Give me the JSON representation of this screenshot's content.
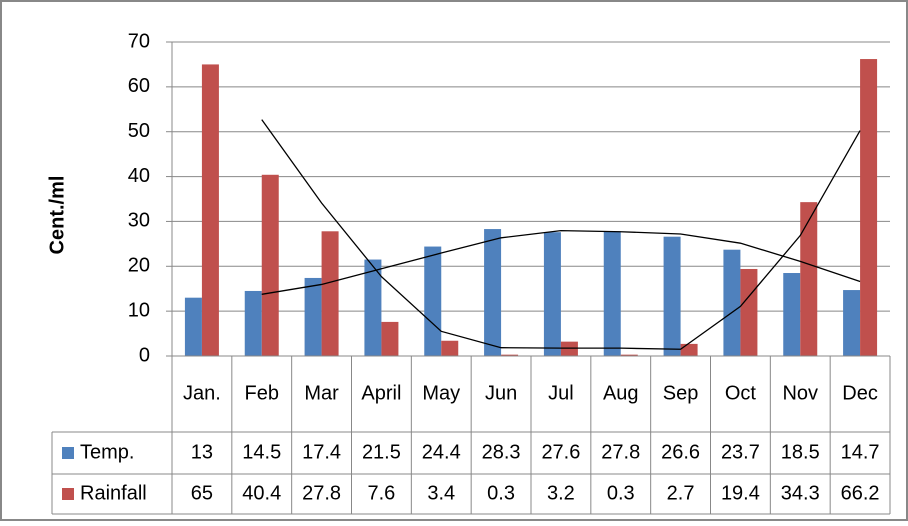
{
  "chart_data": {
    "type": "bar",
    "y_label": "Cent./ml",
    "categories": [
      "Jan.",
      "Feb",
      "Mar",
      "April",
      "May",
      "Jun",
      "Jul",
      "Aug",
      "Sep",
      "Oct",
      "Nov",
      "Dec"
    ],
    "series": [
      {
        "name": "Temp.",
        "color": "#4f81bd",
        "values": [
          13,
          14.5,
          17.4,
          21.5,
          24.4,
          28.3,
          27.6,
          27.8,
          26.6,
          23.7,
          18.5,
          14.7
        ]
      },
      {
        "name": "Rainfall",
        "color": "#c0504d",
        "values": [
          65,
          40.4,
          27.8,
          7.6,
          3.4,
          0.3,
          3.2,
          0.3,
          2.7,
          19.4,
          34.3,
          66.2
        ]
      }
    ],
    "trendline": {
      "type": "moving_average",
      "period": 2,
      "color": "#000000"
    },
    "ylim": [
      0,
      70
    ],
    "yticks": [
      0,
      10,
      20,
      30,
      40,
      50,
      60,
      70
    ],
    "grid": true,
    "data_table": true
  }
}
